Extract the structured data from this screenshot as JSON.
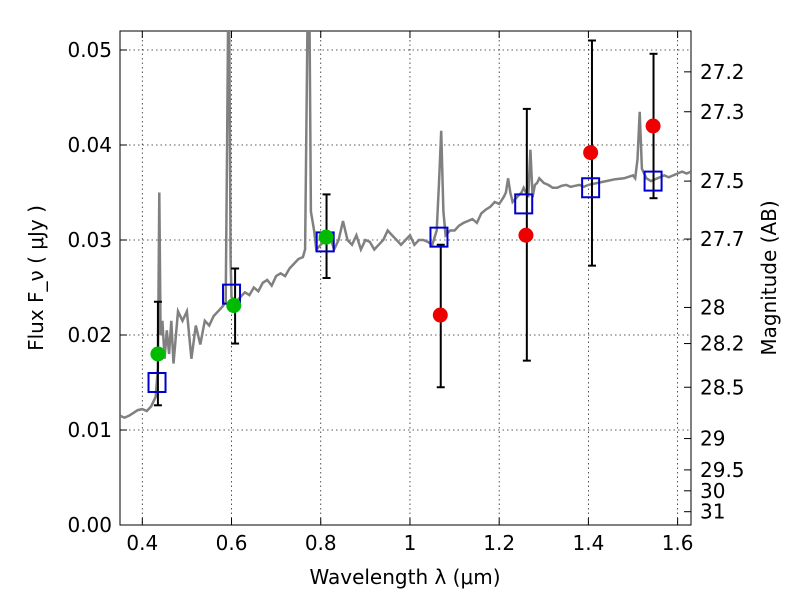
{
  "chart_data": {
    "type": "scatter",
    "xlabel": "Wavelength  λ (μm)",
    "ylabel": "Flux  F_ν  ( μJy )",
    "ylabel_right": "Magnitude (AB)",
    "xlim": [
      0.35,
      1.63
    ],
    "ylim": [
      0.0,
      0.052
    ],
    "grid": true,
    "x_ticks": [
      0.4,
      0.6,
      0.8,
      1.0,
      1.2,
      1.4,
      1.6
    ],
    "x_tick_labels": [
      "0.4",
      "0.6",
      "0.8",
      "1",
      "1.2",
      "1.4",
      "1.6"
    ],
    "y_ticks": [
      0.0,
      0.01,
      0.02,
      0.03,
      0.04,
      0.05
    ],
    "y_tick_labels": [
      "0.00",
      "0.01",
      "0.02",
      "0.03",
      "0.04",
      "0.05"
    ],
    "right_ticks": [
      {
        "label": "27.2",
        "flux": 0.0477
      },
      {
        "label": "27.3",
        "flux": 0.0435
      },
      {
        "label": "27.5",
        "flux": 0.0362
      },
      {
        "label": "27.7",
        "flux": 0.0301
      },
      {
        "label": "28",
        "flux": 0.0229
      },
      {
        "label": "28.2",
        "flux": 0.0191
      },
      {
        "label": "28.5",
        "flux": 0.0145
      },
      {
        "label": "29",
        "flux": 0.0091
      },
      {
        "label": "29.5",
        "flux": 0.0058
      },
      {
        "label": "30",
        "flux": 0.0036
      },
      {
        "label": "31",
        "flux": 0.0014
      }
    ],
    "model_spectrum": {
      "color": "#808080",
      "points": [
        [
          0.35,
          0.0115
        ],
        [
          0.36,
          0.0113
        ],
        [
          0.37,
          0.0115
        ],
        [
          0.38,
          0.0118
        ],
        [
          0.39,
          0.0121
        ],
        [
          0.4,
          0.0122
        ],
        [
          0.41,
          0.012
        ],
        [
          0.42,
          0.0125
        ],
        [
          0.43,
          0.0135
        ],
        [
          0.435,
          0.0165
        ],
        [
          0.438,
          0.035
        ],
        [
          0.441,
          0.02
        ],
        [
          0.445,
          0.0215
        ],
        [
          0.45,
          0.0175
        ],
        [
          0.455,
          0.0205
        ],
        [
          0.46,
          0.018
        ],
        [
          0.465,
          0.0215
        ],
        [
          0.47,
          0.017
        ],
        [
          0.48,
          0.0225
        ],
        [
          0.49,
          0.0215
        ],
        [
          0.5,
          0.0225
        ],
        [
          0.51,
          0.0175
        ],
        [
          0.52,
          0.021
        ],
        [
          0.53,
          0.019
        ],
        [
          0.54,
          0.0215
        ],
        [
          0.55,
          0.021
        ],
        [
          0.56,
          0.022
        ],
        [
          0.57,
          0.0225
        ],
        [
          0.58,
          0.023
        ],
        [
          0.587,
          0.0235
        ],
        [
          0.59,
          0.04
        ],
        [
          0.592,
          0.052
        ],
        [
          0.595,
          0.052
        ],
        [
          0.598,
          0.028
        ],
        [
          0.6,
          0.024
        ],
        [
          0.61,
          0.0235
        ],
        [
          0.62,
          0.024
        ],
        [
          0.63,
          0.0245
        ],
        [
          0.64,
          0.0242
        ],
        [
          0.65,
          0.025
        ],
        [
          0.66,
          0.0246
        ],
        [
          0.67,
          0.0255
        ],
        [
          0.68,
          0.0258
        ],
        [
          0.69,
          0.0252
        ],
        [
          0.7,
          0.0262
        ],
        [
          0.71,
          0.0265
        ],
        [
          0.72,
          0.0262
        ],
        [
          0.73,
          0.027
        ],
        [
          0.74,
          0.0275
        ],
        [
          0.75,
          0.028
        ],
        [
          0.76,
          0.0282
        ],
        [
          0.765,
          0.029
        ],
        [
          0.77,
          0.052
        ],
        [
          0.775,
          0.052
        ],
        [
          0.778,
          0.033
        ],
        [
          0.785,
          0.031
        ],
        [
          0.79,
          0.029
        ],
        [
          0.8,
          0.0295
        ],
        [
          0.81,
          0.03
        ],
        [
          0.82,
          0.0305
        ],
        [
          0.83,
          0.029
        ],
        [
          0.84,
          0.03
        ],
        [
          0.845,
          0.031
        ],
        [
          0.85,
          0.032
        ],
        [
          0.86,
          0.03
        ],
        [
          0.87,
          0.0295
        ],
        [
          0.88,
          0.0305
        ],
        [
          0.89,
          0.029
        ],
        [
          0.9,
          0.03
        ],
        [
          0.91,
          0.0298
        ],
        [
          0.92,
          0.029
        ],
        [
          0.93,
          0.0295
        ],
        [
          0.94,
          0.03
        ],
        [
          0.95,
          0.031
        ],
        [
          0.96,
          0.0305
        ],
        [
          0.97,
          0.03
        ],
        [
          0.98,
          0.0295
        ],
        [
          0.99,
          0.03
        ],
        [
          1.0,
          0.0305
        ],
        [
          1.01,
          0.0295
        ],
        [
          1.02,
          0.03
        ],
        [
          1.03,
          0.03
        ],
        [
          1.04,
          0.0298
        ],
        [
          1.05,
          0.0295
        ],
        [
          1.06,
          0.031
        ],
        [
          1.065,
          0.036
        ],
        [
          1.07,
          0.0415
        ],
        [
          1.075,
          0.033
        ],
        [
          1.08,
          0.0305
        ],
        [
          1.09,
          0.031
        ],
        [
          1.1,
          0.031
        ],
        [
          1.11,
          0.0315
        ],
        [
          1.12,
          0.0318
        ],
        [
          1.13,
          0.032
        ],
        [
          1.14,
          0.0322
        ],
        [
          1.15,
          0.0318
        ],
        [
          1.16,
          0.0328
        ],
        [
          1.17,
          0.0332
        ],
        [
          1.18,
          0.0335
        ],
        [
          1.19,
          0.034
        ],
        [
          1.2,
          0.0338
        ],
        [
          1.21,
          0.0345
        ],
        [
          1.215,
          0.035
        ],
        [
          1.22,
          0.0365
        ],
        [
          1.225,
          0.035
        ],
        [
          1.23,
          0.034
        ],
        [
          1.24,
          0.0345
        ],
        [
          1.25,
          0.035
        ],
        [
          1.255,
          0.0355
        ],
        [
          1.26,
          0.035
        ],
        [
          1.265,
          0.0345
        ],
        [
          1.27,
          0.0395
        ],
        [
          1.275,
          0.0345
        ],
        [
          1.28,
          0.0358
        ],
        [
          1.285,
          0.036
        ],
        [
          1.29,
          0.0365
        ],
        [
          1.3,
          0.036
        ],
        [
          1.31,
          0.0358
        ],
        [
          1.32,
          0.0355
        ],
        [
          1.33,
          0.0355
        ],
        [
          1.34,
          0.0357
        ],
        [
          1.35,
          0.0358
        ],
        [
          1.36,
          0.0356
        ],
        [
          1.37,
          0.0357
        ],
        [
          1.38,
          0.0358
        ],
        [
          1.39,
          0.0356
        ],
        [
          1.4,
          0.0358
        ],
        [
          1.42,
          0.036
        ],
        [
          1.44,
          0.0362
        ],
        [
          1.46,
          0.0364
        ],
        [
          1.48,
          0.0365
        ],
        [
          1.5,
          0.0368
        ],
        [
          1.505,
          0.0365
        ],
        [
          1.51,
          0.0385
        ],
        [
          1.515,
          0.0435
        ],
        [
          1.52,
          0.0375
        ],
        [
          1.53,
          0.0365
        ],
        [
          1.54,
          0.0362
        ],
        [
          1.55,
          0.0364
        ],
        [
          1.56,
          0.0366
        ],
        [
          1.57,
          0.0368
        ],
        [
          1.58,
          0.0366
        ],
        [
          1.59,
          0.0368
        ],
        [
          1.6,
          0.037
        ],
        [
          1.61,
          0.0372
        ],
        [
          1.62,
          0.037
        ],
        [
          1.63,
          0.0372
        ]
      ]
    },
    "observed_points": [
      {
        "x": 0.435,
        "y": 0.018,
        "color": "#00bb00"
      },
      {
        "x": 0.605,
        "y": 0.0231,
        "color": "#00bb00"
      },
      {
        "x": 0.812,
        "y": 0.0303,
        "color": "#00bb00"
      },
      {
        "x": 1.068,
        "y": 0.0221,
        "color": "#ee0000"
      },
      {
        "x": 1.26,
        "y": 0.0305,
        "color": "#ee0000"
      },
      {
        "x": 1.405,
        "y": 0.0392,
        "color": "#ee0000"
      },
      {
        "x": 1.545,
        "y": 0.042,
        "color": "#ee0000"
      }
    ],
    "model_points": {
      "color": "#0000cc",
      "points": [
        {
          "x": 0.433,
          "y": 0.015
        },
        {
          "x": 0.6,
          "y": 0.0243
        },
        {
          "x": 0.81,
          "y": 0.0298
        },
        {
          "x": 1.065,
          "y": 0.0303
        },
        {
          "x": 1.255,
          "y": 0.0338
        },
        {
          "x": 1.405,
          "y": 0.0355
        },
        {
          "x": 1.545,
          "y": 0.0362
        }
      ]
    },
    "error_bars": [
      {
        "x": 0.435,
        "low": 0.0126,
        "high": 0.0235
      },
      {
        "x": 0.608,
        "low": 0.0191,
        "high": 0.027
      },
      {
        "x": 0.813,
        "low": 0.026,
        "high": 0.0348
      },
      {
        "x": 1.069,
        "low": 0.0145,
        "high": 0.0295
      },
      {
        "x": 1.262,
        "low": 0.0173,
        "high": 0.0438
      },
      {
        "x": 1.408,
        "low": 0.0273,
        "high": 0.051
      },
      {
        "x": 1.546,
        "low": 0.0344,
        "high": 0.0496
      }
    ]
  }
}
